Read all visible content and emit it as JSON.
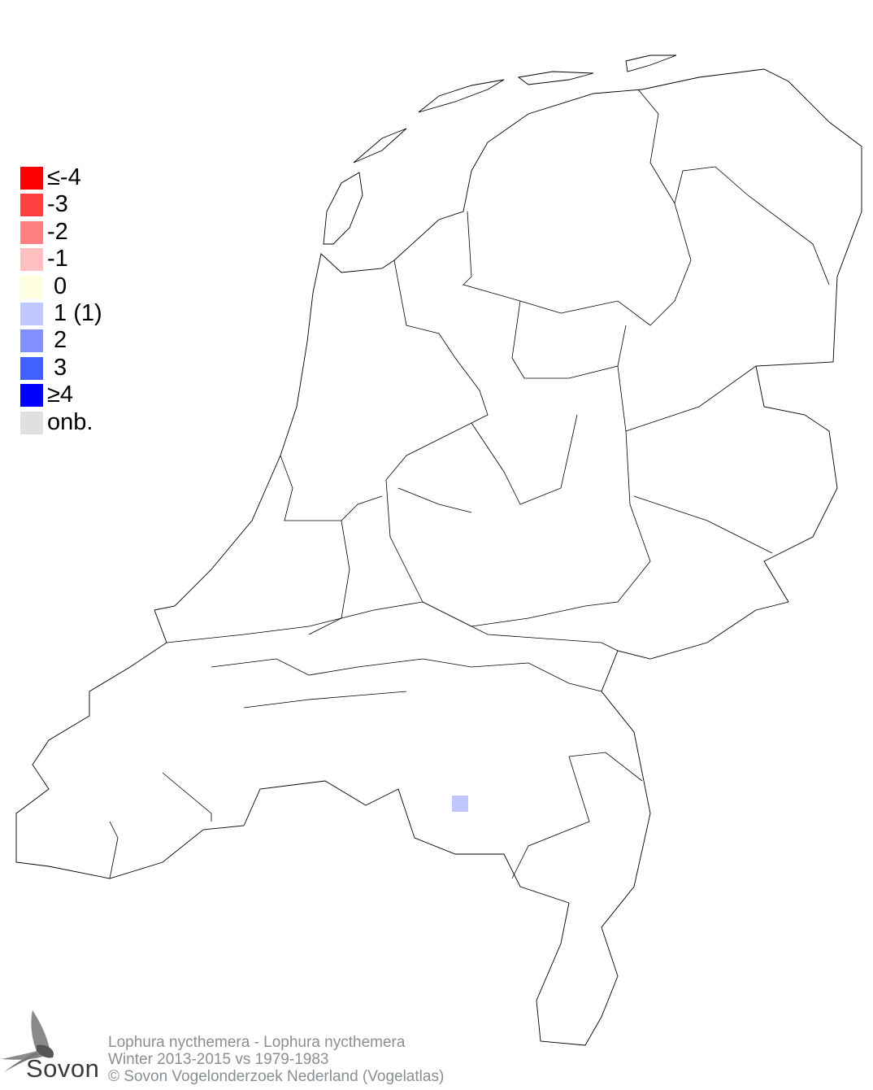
{
  "legend": {
    "items": [
      {
        "label": "≤-4",
        "color": "#ff0000"
      },
      {
        "label": "-3",
        "color": "#ff4040"
      },
      {
        "label": "-2",
        "color": "#ff8080"
      },
      {
        "label": "-1",
        "color": "#ffc0c0"
      },
      {
        "label": " 0",
        "color": "#ffffe0"
      },
      {
        "label": " 1 (1)",
        "color": "#c0c8ff"
      },
      {
        "label": " 2",
        "color": "#8090ff"
      },
      {
        "label": " 3",
        "color": "#4060ff"
      },
      {
        "label": "≥4",
        "color": "#0000ff"
      },
      {
        "label": "onb.",
        "color": "#e0e0e0"
      }
    ]
  },
  "map": {
    "region": "Netherlands",
    "cells": [
      {
        "category": "1",
        "color": "#c0c8ff"
      }
    ]
  },
  "footer": {
    "species": "Lophura nycthemera  - Lophura nycthemera",
    "period": "Winter 2013-2015 vs 1979-1983",
    "copyright": "© Sovon Vogelonderzoek Nederland (Vogelatlas)"
  },
  "logo": {
    "text": "Sovon"
  }
}
